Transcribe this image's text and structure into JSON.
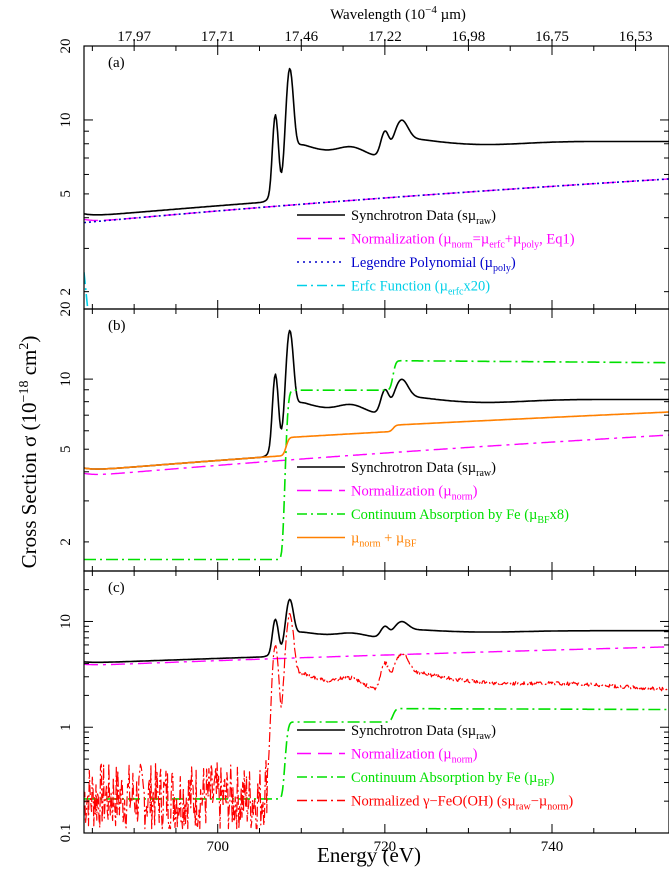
{
  "figure": {
    "y_axis_label_main": "Cross Section σ (10",
    "y_axis_label_exp": "−18",
    "y_axis_label_mid": " cm",
    "y_axis_label_exp2": "2",
    "y_axis_label_end": ")",
    "x_axis_label": "Energy (eV)",
    "top_axis_label_main": "Wavelength (10",
    "top_axis_label_exp": "−4",
    "top_axis_label_end": " µm)"
  },
  "colors": {
    "black": "#000000",
    "magenta": "#ff00ff",
    "blue": "#0000cc",
    "cyan": "#00d0e8",
    "green": "#00e000",
    "orange": "#ff8000",
    "red": "#ff0000"
  },
  "chart_data": [
    {
      "panel": "(a)",
      "type": "line",
      "yscale": "log",
      "xlim": [
        684,
        754
      ],
      "ylim": [
        1.7,
        20
      ],
      "x_ticks": [
        700,
        720,
        740
      ],
      "y_tick_labels": [
        "2",
        "5",
        "10",
        "20"
      ],
      "y_ticks": [
        2,
        5,
        10,
        20
      ],
      "top_axis": {
        "label": "Wavelength (10−4 µm)",
        "tick_labels": [
          "17.97",
          "17.71",
          "17.46",
          "17.22",
          "16.98",
          "16.75",
          "16.53"
        ],
        "tick_energies": [
          690,
          700,
          710,
          720,
          730,
          740,
          750
        ]
      },
      "legend": [
        {
          "text": "Synchrotron Data (sµ",
          "sub": "raw",
          "after": ")",
          "color": "#000000",
          "dash": "solid"
        },
        {
          "text": "Normalization (µ",
          "sub": "norm",
          "after": "=µ",
          "sub2": "erfc",
          "after2": "+µ",
          "sub3": "poly",
          "after3": ", Eq1)",
          "color": "#ff00ff",
          "dash": "longdash"
        },
        {
          "text": "Legendre Polynomial (µ",
          "sub": "poly",
          "after": ")",
          "color": "#0000cc",
          "dash": "dot"
        },
        {
          "text": "Erfc Function (µ",
          "sub": "erfc",
          "after": "x20)",
          "color": "#00d0e8",
          "dash": "dashdot"
        }
      ],
      "series": [
        {
          "name": "Synchrotron Data (sµraw)",
          "kind": "sync"
        },
        {
          "name": "Normalization (µnorm=µerfc+µpoly, Eq1)",
          "kind": "norm_a"
        },
        {
          "name": "Legendre Polynomial (µpoly)",
          "kind": "poly"
        },
        {
          "name": "Erfc Function (µerfcx20)",
          "kind": "erfc20"
        }
      ]
    },
    {
      "panel": "(b)",
      "type": "line",
      "yscale": "log",
      "xlim": [
        684,
        754
      ],
      "ylim": [
        1.5,
        20
      ],
      "x_ticks": [
        700,
        720,
        740
      ],
      "y_tick_labels": [
        "2",
        "5",
        "10",
        "20"
      ],
      "y_ticks": [
        2,
        5,
        10,
        20
      ],
      "legend": [
        {
          "text": "Synchrotron Data (sµ",
          "sub": "raw",
          "after": ")",
          "color": "#000000",
          "dash": "solid"
        },
        {
          "text": "Normalization (µ",
          "sub": "norm",
          "after": ")",
          "color": "#ff00ff",
          "dash": "longdash"
        },
        {
          "text": "Continuum Absorption by Fe (µ",
          "sub": "BF",
          "after": "x8)",
          "color": "#00e000",
          "dash": "dashdot"
        },
        {
          "text": "µ",
          "sub": "norm",
          "after": " + µ",
          "sub2": "BF",
          "after2": "",
          "color": "#ff8000",
          "dash": "solid"
        }
      ],
      "series": [
        {
          "name": "Synchrotron Data (sµraw)",
          "kind": "sync"
        },
        {
          "name": "Normalization (µnorm)",
          "kind": "norm_b"
        },
        {
          "name": "Continuum Absorption by Fe (µBFx8)",
          "kind": "bf8"
        },
        {
          "name": "µnorm + µBF",
          "kind": "normbf"
        }
      ]
    },
    {
      "panel": "(c)",
      "type": "line",
      "yscale": "log",
      "xlim": [
        684,
        754
      ],
      "ylim": [
        0.1,
        30
      ],
      "x_ticks": [
        700,
        720,
        740
      ],
      "y_tick_labels": [
        "0.1",
        "1",
        "10"
      ],
      "y_ticks": [
        0.1,
        1,
        10
      ],
      "legend": [
        {
          "text": "Synchrotron Data (sµ",
          "sub": "raw",
          "after": ")",
          "color": "#000000",
          "dash": "solid"
        },
        {
          "text": "Normalization (µ",
          "sub": "norm",
          "after": ")",
          "color": "#ff00ff",
          "dash": "longdash"
        },
        {
          "text": "Continuum Absorption by Fe (µ",
          "sub": "BF",
          "after": ")",
          "color": "#00e000",
          "dash": "dashdot"
        },
        {
          "text": "Normalized γ−FeO(OH) (sµ",
          "sub": "raw",
          "after": "−µ",
          "sub2": "norm",
          "after2": ")",
          "color": "#ff0000",
          "dash": "dashdot"
        }
      ],
      "series": [
        {
          "name": "Synchrotron Data (sµraw)",
          "kind": "sync"
        },
        {
          "name": "Normalization (µnorm)",
          "kind": "norm_c"
        },
        {
          "name": "Continuum Absorption by Fe (µBF)",
          "kind": "bf1"
        },
        {
          "name": "Normalized γ−FeO(OH) (sµraw−µnorm)",
          "kind": "resid"
        }
      ]
    }
  ]
}
